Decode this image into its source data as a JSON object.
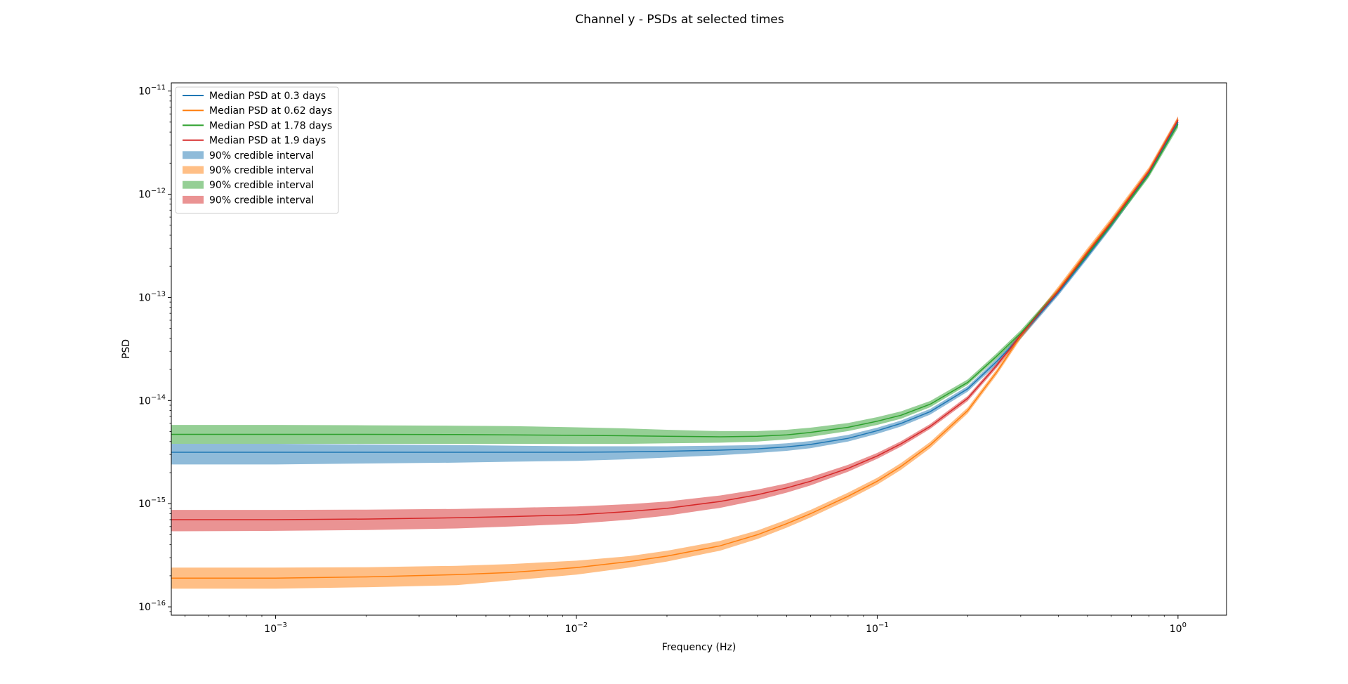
{
  "chart_data": {
    "type": "line",
    "title": "Channel y - PSDs at selected times",
    "xlabel": "Frequency (Hz)",
    "ylabel": "PSD",
    "xscale": "log",
    "yscale": "log",
    "xlim": [
      0.00045,
      1.45
    ],
    "ylim": [
      8.3e-17,
      1.2e-11
    ],
    "grid": false,
    "legend_position": "top-left",
    "x_ticks": [
      {
        "value": 0.001,
        "base": "10",
        "exp": "−3"
      },
      {
        "value": 0.01,
        "base": "10",
        "exp": "−2"
      },
      {
        "value": 0.1,
        "base": "10",
        "exp": "−1"
      },
      {
        "value": 1,
        "base": "10",
        "exp": "0"
      }
    ],
    "y_ticks": [
      {
        "value": 1e-16,
        "base": "10",
        "exp": "−16"
      },
      {
        "value": 1e-15,
        "base": "10",
        "exp": "−15"
      },
      {
        "value": 1e-14,
        "base": "10",
        "exp": "−14"
      },
      {
        "value": 1e-13,
        "base": "10",
        "exp": "−13"
      },
      {
        "value": 1e-12,
        "base": "10",
        "exp": "−12"
      },
      {
        "value": 1e-11,
        "base": "10",
        "exp": "−11"
      }
    ],
    "x": [
      0.00045,
      0.001,
      0.002,
      0.004,
      0.006,
      0.01,
      0.015,
      0.02,
      0.03,
      0.04,
      0.05,
      0.06,
      0.08,
      0.1,
      0.12,
      0.15,
      0.2,
      0.25,
      0.3,
      0.4,
      0.5,
      0.6,
      0.8,
      1.0
    ],
    "series": [
      {
        "name": "Median PSD at 0.3 days",
        "color": "#1f77b4",
        "median": [
          3.15e-15,
          3.15e-15,
          3.15e-15,
          3.15e-15,
          3.15e-15,
          3.15e-15,
          3.18e-15,
          3.22e-15,
          3.3e-15,
          3.4e-15,
          3.55e-15,
          3.75e-15,
          4.3e-15,
          5.1e-15,
          6e-15,
          7.8e-15,
          1.3e-14,
          2.4e-14,
          4.2e-14,
          1.1e-13,
          2.5e-13,
          5e-13,
          1.6e-12,
          5e-12
        ],
        "lower": [
          2.4e-15,
          2.4e-15,
          2.45e-15,
          2.5e-15,
          2.55e-15,
          2.6e-15,
          2.7e-15,
          2.8e-15,
          2.95e-15,
          3.1e-15,
          3.25e-15,
          3.45e-15,
          4e-15,
          4.75e-15,
          5.6e-15,
          7.3e-15,
          1.22e-14,
          2.25e-14,
          3.95e-14,
          1.04e-13,
          2.36e-13,
          4.7e-13,
          1.5e-12,
          4.6e-12
        ],
        "upper": [
          3.8e-15,
          3.8e-15,
          3.75e-15,
          3.7e-15,
          3.65e-15,
          3.6e-15,
          3.6e-15,
          3.6e-15,
          3.65e-15,
          3.7e-15,
          3.85e-15,
          4.05e-15,
          4.65e-15,
          5.45e-15,
          6.4e-15,
          8.3e-15,
          1.38e-14,
          2.55e-14,
          4.45e-14,
          1.16e-13,
          2.64e-13,
          5.3e-13,
          1.7e-12,
          5.4e-12
        ]
      },
      {
        "name": "Median PSD at 0.62 days",
        "color": "#ff7f0e",
        "median": [
          1.9e-16,
          1.9e-16,
          1.95e-16,
          2.05e-16,
          2.15e-16,
          2.4e-16,
          2.75e-16,
          3.1e-16,
          3.9e-16,
          5e-16,
          6.4e-16,
          8e-16,
          1.18e-15,
          1.65e-15,
          2.3e-15,
          3.7e-15,
          8e-15,
          1.9e-14,
          4.2e-14,
          1.2e-13,
          2.8e-13,
          5.5e-13,
          1.7e-12,
          5.3e-12
        ],
        "lower": [
          1.5e-16,
          1.5e-16,
          1.55e-16,
          1.62e-16,
          1.8e-16,
          2.05e-16,
          2.4e-16,
          2.75e-16,
          3.5e-16,
          4.55e-16,
          5.85e-16,
          7.35e-16,
          1.09e-15,
          1.53e-15,
          2.13e-15,
          3.45e-15,
          7.5e-15,
          1.78e-14,
          3.95e-14,
          1.12e-13,
          2.6e-13,
          5.1e-13,
          1.58e-12,
          4.9e-12
        ],
        "upper": [
          2.4e-16,
          2.4e-16,
          2.42e-16,
          2.5e-16,
          2.6e-16,
          2.8e-16,
          3.1e-16,
          3.5e-16,
          4.35e-16,
          5.5e-16,
          7e-16,
          8.7e-16,
          1.28e-15,
          1.78e-15,
          2.48e-15,
          3.97e-15,
          8.55e-15,
          2.02e-14,
          4.45e-14,
          1.28e-13,
          3e-13,
          5.9e-13,
          1.82e-12,
          5.7e-12
        ]
      },
      {
        "name": "Median PSD at 1.78 days",
        "color": "#2ca02c",
        "median": [
          4.7e-15,
          4.7e-15,
          4.7e-15,
          4.68e-15,
          4.65e-15,
          4.6e-15,
          4.55e-15,
          4.5e-15,
          4.45e-15,
          4.5e-15,
          4.65e-15,
          4.9e-15,
          5.5e-15,
          6.3e-15,
          7.2e-15,
          9.2e-15,
          1.5e-14,
          2.7e-14,
          4.5e-14,
          1.15e-13,
          2.6e-13,
          5.1e-13,
          1.55e-12,
          4.8e-12
        ],
        "lower": [
          3.8e-15,
          3.8e-15,
          3.8e-15,
          3.8e-15,
          3.8e-15,
          3.8e-15,
          3.8e-15,
          3.85e-15,
          3.9e-15,
          4e-15,
          4.2e-15,
          4.45e-15,
          5.05e-15,
          5.8e-15,
          6.65e-15,
          8.6e-15,
          1.42e-14,
          2.55e-14,
          4.25e-14,
          1.09e-13,
          2.46e-13,
          4.8e-13,
          1.45e-12,
          4.4e-12
        ],
        "upper": [
          5.8e-15,
          5.8e-15,
          5.75e-15,
          5.7e-15,
          5.65e-15,
          5.5e-15,
          5.35e-15,
          5.2e-15,
          5.05e-15,
          5.05e-15,
          5.2e-15,
          5.45e-15,
          6.05e-15,
          6.9e-15,
          7.85e-15,
          9.9e-15,
          1.6e-14,
          2.88e-14,
          4.8e-14,
          1.22e-13,
          2.75e-13,
          5.4e-13,
          1.65e-12,
          5.2e-12
        ]
      },
      {
        "name": "Median PSD at 1.9 days",
        "color": "#d62728",
        "median": [
          7e-16,
          7e-16,
          7.1e-16,
          7.3e-16,
          7.5e-16,
          7.8e-16,
          8.4e-16,
          9e-16,
          1.05e-15,
          1.22e-15,
          1.42e-15,
          1.65e-15,
          2.2e-15,
          2.9e-15,
          3.8e-15,
          5.6e-15,
          1.05e-14,
          2.2e-14,
          4.3e-14,
          1.15e-13,
          2.7e-13,
          5.3e-13,
          1.65e-12,
          5.2e-12
        ],
        "lower": [
          5.4e-16,
          5.45e-16,
          5.55e-16,
          5.75e-16,
          6e-16,
          6.4e-16,
          7e-16,
          7.65e-16,
          9.1e-16,
          1.08e-15,
          1.28e-15,
          1.5e-15,
          2.04e-15,
          2.72e-15,
          3.58e-15,
          5.3e-15,
          9.9e-15,
          2.08e-14,
          4.06e-14,
          1.08e-13,
          2.54e-13,
          4.98e-13,
          1.55e-12,
          4.85e-12
        ],
        "upper": [
          8.7e-16,
          8.7e-16,
          8.75e-16,
          8.9e-16,
          9.1e-16,
          9.4e-16,
          9.9e-16,
          1.05e-15,
          1.2e-15,
          1.37e-15,
          1.57e-15,
          1.81e-15,
          2.38e-15,
          3.1e-15,
          4.03e-15,
          5.92e-15,
          1.11e-14,
          2.32e-14,
          4.55e-14,
          1.22e-13,
          2.86e-13,
          5.62e-13,
          1.75e-12,
          5.6e-12
        ]
      }
    ],
    "legend": [
      {
        "label": "Median PSD at 0.3 days",
        "kind": "line",
        "color": "#1f77b4"
      },
      {
        "label": "Median PSD at 0.62 days",
        "kind": "line",
        "color": "#ff7f0e"
      },
      {
        "label": "Median PSD at 1.78 days",
        "kind": "line",
        "color": "#2ca02c"
      },
      {
        "label": "Median PSD at 1.9 days",
        "kind": "line",
        "color": "#d62728"
      },
      {
        "label": "90% credible interval",
        "kind": "patch",
        "color": "#1f77b4"
      },
      {
        "label": "90% credible interval",
        "kind": "patch",
        "color": "#ff7f0e"
      },
      {
        "label": "90% credible interval",
        "kind": "patch",
        "color": "#2ca02c"
      },
      {
        "label": "90% credible interval",
        "kind": "patch",
        "color": "#d62728"
      }
    ]
  }
}
